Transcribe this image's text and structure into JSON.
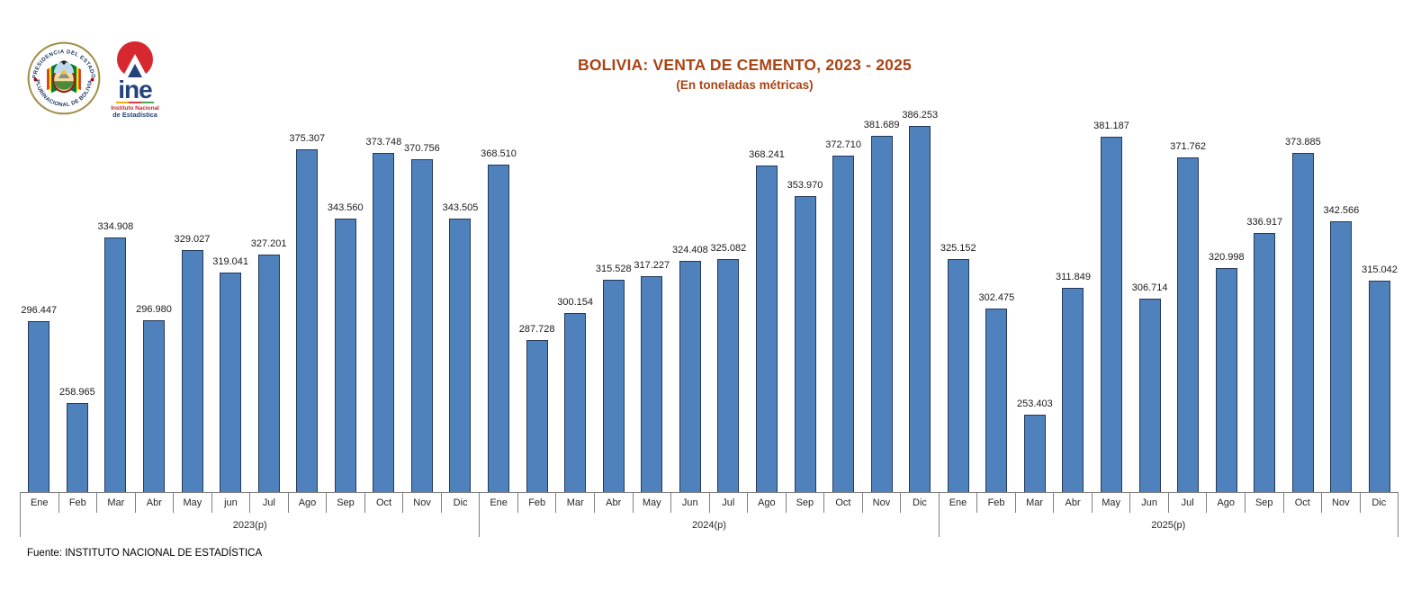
{
  "header": {
    "title": "BOLIVIA: VENTA DE CEMENTO, 2023 - 2025",
    "subtitle": "(En toneladas métricas)",
    "title_color": "#A94413",
    "logos": {
      "seal_text_top": "PRESIDENCIA DEL ESTADO",
      "seal_text_bottom": "PLURINACIONAL DE BOLIVIA",
      "ine_acronym": "ine",
      "ine_line1": "Instituto Nacional",
      "ine_line2": "de Estadística"
    }
  },
  "chart_data": {
    "type": "bar",
    "title": "BOLIVIA: VENTA DE CEMENTO, 2023 - 2025",
    "subtitle": "(En toneladas métricas)",
    "unit": "toneladas métricas",
    "bar_color": "#4F81BD",
    "bar_border_color": "#24395B",
    "legend": "none",
    "grid": "off",
    "value_axis": {
      "min": 218000,
      "max": 386253,
      "visible": false
    },
    "groups": [
      {
        "year": "2023(p)",
        "months": [
          "Ene",
          "Feb",
          "Mar",
          "Abr",
          "May",
          "jun",
          "Jul",
          "Ago",
          "Sep",
          "Oct",
          "Nov",
          "Dic"
        ],
        "values": [
          296447,
          258965,
          334908,
          296980,
          329027,
          319041,
          327201,
          375307,
          343560,
          373748,
          370756,
          343505
        ],
        "labels": [
          "296.447",
          "258.965",
          "334.908",
          "296.980",
          "329.027",
          "319.041",
          "327.201",
          "375.307",
          "343.560",
          "373.748",
          "370.756",
          "343.505"
        ]
      },
      {
        "year": "2024(p)",
        "months": [
          "Ene",
          "Feb",
          "Mar",
          "Abr",
          "May",
          "Jun",
          "Jul",
          "Ago",
          "Sep",
          "Oct",
          "Nov",
          "Dic"
        ],
        "values": [
          368510,
          287728,
          300154,
          315528,
          317227,
          324408,
          325082,
          368241,
          353970,
          372710,
          381689,
          386253
        ],
        "labels": [
          "368.510",
          "287.728",
          "300.154",
          "315.528",
          "317.227",
          "324.408",
          "325.082",
          "368.241",
          "353.970",
          "372.710",
          "381.689",
          "386.253"
        ]
      },
      {
        "year": "2025(p)",
        "months": [
          "Ene",
          "Feb",
          "Mar",
          "Abr",
          "May",
          "Jun",
          "Jul",
          "Ago",
          "Sep",
          "Oct",
          "Nov",
          "Dic"
        ],
        "values": [
          325152,
          302475,
          253403,
          311849,
          381187,
          306714,
          371762,
          320998,
          336917,
          373885,
          342566,
          315042
        ],
        "labels": [
          "325.152",
          "302.475",
          "253.403",
          "311.849",
          "381.187",
          "306.714",
          "371.762",
          "320.998",
          "336.917",
          "373.885",
          "342.566",
          "315.042"
        ]
      }
    ]
  },
  "footer": {
    "source": "Fuente: INSTITUTO NACIONAL DE ESTADÍSTICA"
  }
}
